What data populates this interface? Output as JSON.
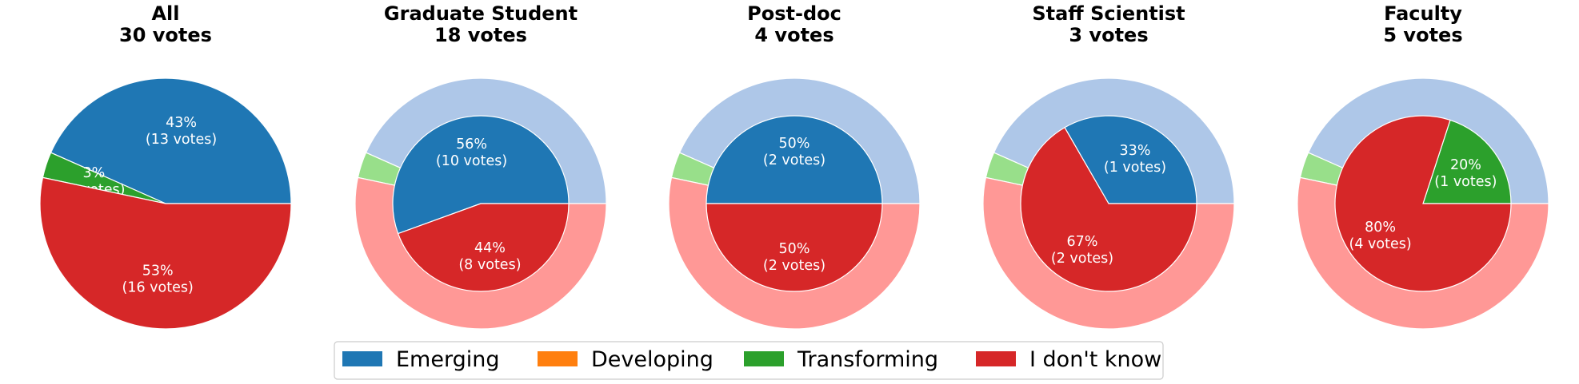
{
  "colors": {
    "Emerging": "#1f77b4",
    "Developing": "#ff7f0e",
    "Transforming": "#2ca02c",
    "I don't know": "#d62728",
    "outer_Emerging": "#aec7e8",
    "outer_Developing": "#ffbb78",
    "outer_Transforming": "#98df8a",
    "outer_I don't know": "#ff9896"
  },
  "legend": [
    "Emerging",
    "Developing",
    "Transforming",
    "I don't know"
  ],
  "chart_data": [
    {
      "type": "pie",
      "title": "All",
      "subtitle": "30 votes",
      "slices": [
        {
          "category": "Emerging",
          "votes": 13,
          "label_pct": "43%",
          "label_votes": "(13 votes)"
        },
        {
          "category": "Transforming",
          "votes": 1,
          "label_pct": "3%",
          "label_votes": "(1 votes)"
        },
        {
          "category": "I don't know",
          "votes": 16,
          "label_pct": "53%",
          "label_votes": "(16 votes)"
        }
      ]
    },
    {
      "type": "pie",
      "title": "Graduate Student",
      "subtitle": "18 votes",
      "slices": [
        {
          "category": "Emerging",
          "votes": 10,
          "label_pct": "56%",
          "label_votes": "(10 votes)"
        },
        {
          "category": "I don't know",
          "votes": 8,
          "label_pct": "44%",
          "label_votes": "(8 votes)"
        }
      ]
    },
    {
      "type": "pie",
      "title": "Post-doc",
      "subtitle": "4 votes",
      "slices": [
        {
          "category": "Emerging",
          "votes": 2,
          "label_pct": "50%",
          "label_votes": "(2 votes)"
        },
        {
          "category": "I don't know",
          "votes": 2,
          "label_pct": "50%",
          "label_votes": "(2 votes)"
        }
      ]
    },
    {
      "type": "pie",
      "title": "Staff Scientist",
      "subtitle": "3 votes",
      "slices": [
        {
          "category": "Emerging",
          "votes": 1,
          "label_pct": "33%",
          "label_votes": "(1 votes)"
        },
        {
          "category": "I don't know",
          "votes": 2,
          "label_pct": "67%",
          "label_votes": "(2 votes)"
        }
      ]
    },
    {
      "type": "pie",
      "title": "Faculty",
      "subtitle": "5 votes",
      "slices": [
        {
          "category": "Transforming",
          "votes": 1,
          "label_pct": "20%",
          "label_votes": "(1 votes)"
        },
        {
          "category": "I don't know",
          "votes": 4,
          "label_pct": "80%",
          "label_votes": "(4 votes)"
        }
      ]
    }
  ]
}
